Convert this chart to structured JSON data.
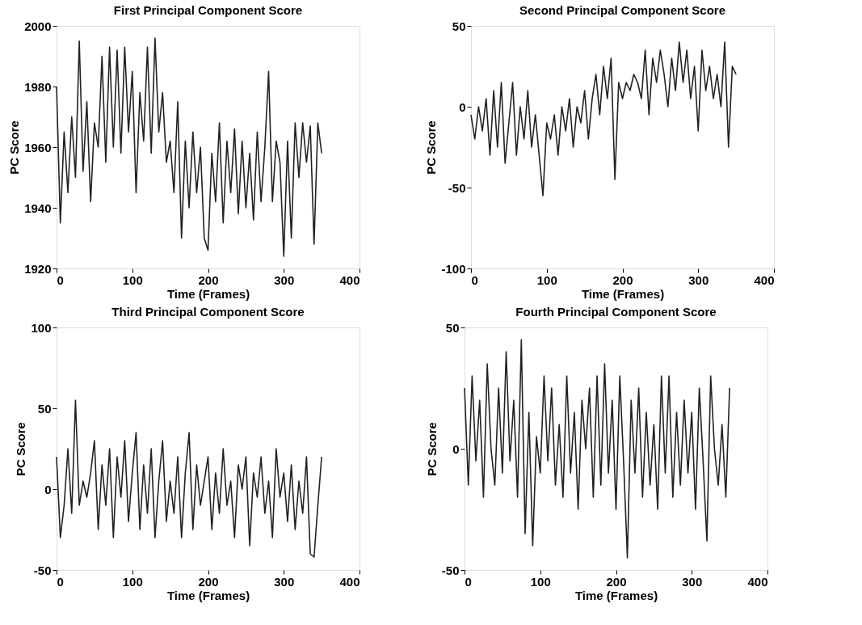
{
  "chart_data": [
    {
      "type": "line",
      "title": "First Principal Component Score",
      "xlabel": "Time (Frames)",
      "ylabel": "PC Score",
      "xlim": [
        0,
        400
      ],
      "xticks": [
        0,
        100,
        200,
        300,
        400
      ],
      "ylim": [
        1920,
        2000
      ],
      "yticks": [
        1920,
        1940,
        1960,
        1980,
        2000
      ],
      "x": [
        0,
        5,
        10,
        15,
        20,
        25,
        30,
        35,
        40,
        45,
        50,
        55,
        60,
        65,
        70,
        75,
        80,
        85,
        90,
        95,
        100,
        105,
        110,
        115,
        120,
        125,
        130,
        135,
        140,
        145,
        150,
        155,
        160,
        165,
        170,
        175,
        180,
        185,
        190,
        195,
        200,
        205,
        210,
        215,
        220,
        225,
        230,
        235,
        240,
        245,
        250,
        255,
        260,
        265,
        270,
        275,
        280,
        285,
        290,
        295,
        300,
        305,
        310,
        315,
        320,
        325,
        330,
        335,
        340,
        345,
        350
      ],
      "series": [
        {
          "color": "#222222",
          "values": [
            1980,
            1935,
            1965,
            1945,
            1970,
            1950,
            1995,
            1952,
            1975,
            1942,
            1968,
            1960,
            1990,
            1955,
            1993,
            1960,
            1992,
            1958,
            1993,
            1965,
            1985,
            1945,
            1978,
            1962,
            1993,
            1958,
            1996,
            1965,
            1978,
            1955,
            1962,
            1945,
            1975,
            1930,
            1962,
            1940,
            1965,
            1945,
            1960,
            1930,
            1926,
            1958,
            1942,
            1968,
            1935,
            1962,
            1945,
            1966,
            1938,
            1962,
            1940,
            1958,
            1936,
            1965,
            1942,
            1960,
            1985,
            1942,
            1962,
            1955,
            1924,
            1962,
            1930,
            1968,
            1950,
            1968,
            1955,
            1967,
            1928,
            1968,
            1958
          ]
        }
      ]
    },
    {
      "type": "line",
      "title": "Second Principal Component Score",
      "xlabel": "Time (Frames)",
      "ylabel": "PC Score",
      "xlim": [
        0,
        400
      ],
      "xticks": [
        0,
        100,
        200,
        300,
        400
      ],
      "ylim": [
        -100,
        50
      ],
      "yticks": [
        -100,
        -50,
        0,
        50
      ],
      "x": [
        0,
        5,
        10,
        15,
        20,
        25,
        30,
        35,
        40,
        45,
        50,
        55,
        60,
        65,
        70,
        75,
        80,
        85,
        90,
        95,
        100,
        105,
        110,
        115,
        120,
        125,
        130,
        135,
        140,
        145,
        150,
        155,
        160,
        165,
        170,
        175,
        180,
        185,
        190,
        195,
        200,
        205,
        210,
        215,
        220,
        225,
        230,
        235,
        240,
        245,
        250,
        255,
        260,
        265,
        270,
        275,
        280,
        285,
        290,
        295,
        300,
        305,
        310,
        315,
        320,
        325,
        330,
        335,
        340,
        345,
        350
      ],
      "series": [
        {
          "color": "#222222",
          "values": [
            -5,
            -20,
            0,
            -15,
            5,
            -30,
            10,
            -25,
            15,
            -35,
            -10,
            15,
            -30,
            0,
            -20,
            10,
            -25,
            -5,
            -30,
            -55,
            -10,
            -20,
            -5,
            -30,
            0,
            -15,
            5,
            -25,
            0,
            -10,
            10,
            -20,
            5,
            20,
            -5,
            25,
            5,
            30,
            -45,
            15,
            5,
            15,
            10,
            20,
            15,
            5,
            35,
            -5,
            30,
            15,
            35,
            20,
            0,
            30,
            10,
            40,
            15,
            35,
            5,
            25,
            -15,
            35,
            10,
            25,
            5,
            20,
            0,
            40,
            -25,
            25,
            20
          ]
        }
      ]
    },
    {
      "type": "line",
      "title": "Third Principal Component Score",
      "xlabel": "Time (Frames)",
      "ylabel": "PC Score",
      "xlim": [
        0,
        400
      ],
      "xticks": [
        0,
        100,
        200,
        300,
        400
      ],
      "ylim": [
        -50,
        100
      ],
      "yticks": [
        -50,
        0,
        50,
        100
      ],
      "x": [
        0,
        5,
        10,
        15,
        20,
        25,
        30,
        35,
        40,
        45,
        50,
        55,
        60,
        65,
        70,
        75,
        80,
        85,
        90,
        95,
        100,
        105,
        110,
        115,
        120,
        125,
        130,
        135,
        140,
        145,
        150,
        155,
        160,
        165,
        170,
        175,
        180,
        185,
        190,
        195,
        200,
        205,
        210,
        215,
        220,
        225,
        230,
        235,
        240,
        245,
        250,
        255,
        260,
        265,
        270,
        275,
        280,
        285,
        290,
        295,
        300,
        305,
        310,
        315,
        320,
        325,
        330,
        335,
        340,
        345,
        350
      ],
      "series": [
        {
          "color": "#222222",
          "values": [
            20,
            -30,
            -10,
            25,
            -15,
            55,
            -10,
            5,
            -5,
            10,
            30,
            -25,
            15,
            -10,
            25,
            -30,
            20,
            -5,
            30,
            -20,
            10,
            35,
            -25,
            15,
            -15,
            25,
            -30,
            5,
            30,
            -20,
            5,
            -15,
            20,
            -30,
            10,
            35,
            -25,
            15,
            -10,
            5,
            20,
            -25,
            10,
            -15,
            25,
            -10,
            5,
            -30,
            15,
            0,
            20,
            -35,
            10,
            -5,
            20,
            -15,
            5,
            -30,
            25,
            -5,
            10,
            -20,
            15,
            -25,
            5,
            -15,
            20,
            -40,
            -42,
            -10,
            20
          ]
        }
      ]
    },
    {
      "type": "line",
      "title": "Fourth Principal Component Score",
      "xlabel": "Time (Frames)",
      "ylabel": "PC Score",
      "xlim": [
        0,
        400
      ],
      "xticks": [
        0,
        100,
        200,
        300,
        400
      ],
      "ylim": [
        -50,
        50
      ],
      "yticks": [
        -50,
        0,
        50
      ],
      "x": [
        0,
        5,
        10,
        15,
        20,
        25,
        30,
        35,
        40,
        45,
        50,
        55,
        60,
        65,
        70,
        75,
        80,
        85,
        90,
        95,
        100,
        105,
        110,
        115,
        120,
        125,
        130,
        135,
        140,
        145,
        150,
        155,
        160,
        165,
        170,
        175,
        180,
        185,
        190,
        195,
        200,
        205,
        210,
        215,
        220,
        225,
        230,
        235,
        240,
        245,
        250,
        255,
        260,
        265,
        270,
        275,
        280,
        285,
        290,
        295,
        300,
        305,
        310,
        315,
        320,
        325,
        330,
        335,
        340,
        345,
        350
      ],
      "series": [
        {
          "color": "#222222",
          "values": [
            25,
            -15,
            30,
            -5,
            20,
            -20,
            35,
            0,
            -15,
            25,
            -10,
            40,
            -5,
            20,
            -20,
            45,
            -35,
            15,
            -40,
            5,
            -10,
            30,
            -5,
            25,
            -15,
            10,
            -20,
            30,
            -10,
            15,
            -25,
            20,
            0,
            25,
            -20,
            30,
            -15,
            35,
            -10,
            20,
            -25,
            30,
            -5,
            -45,
            20,
            -10,
            25,
            -20,
            15,
            -15,
            10,
            -25,
            30,
            -10,
            30,
            -20,
            15,
            -15,
            20,
            -10,
            15,
            -25,
            25,
            -5,
            -38,
            30,
            0,
            -15,
            10,
            -20,
            25
          ]
        }
      ]
    }
  ]
}
